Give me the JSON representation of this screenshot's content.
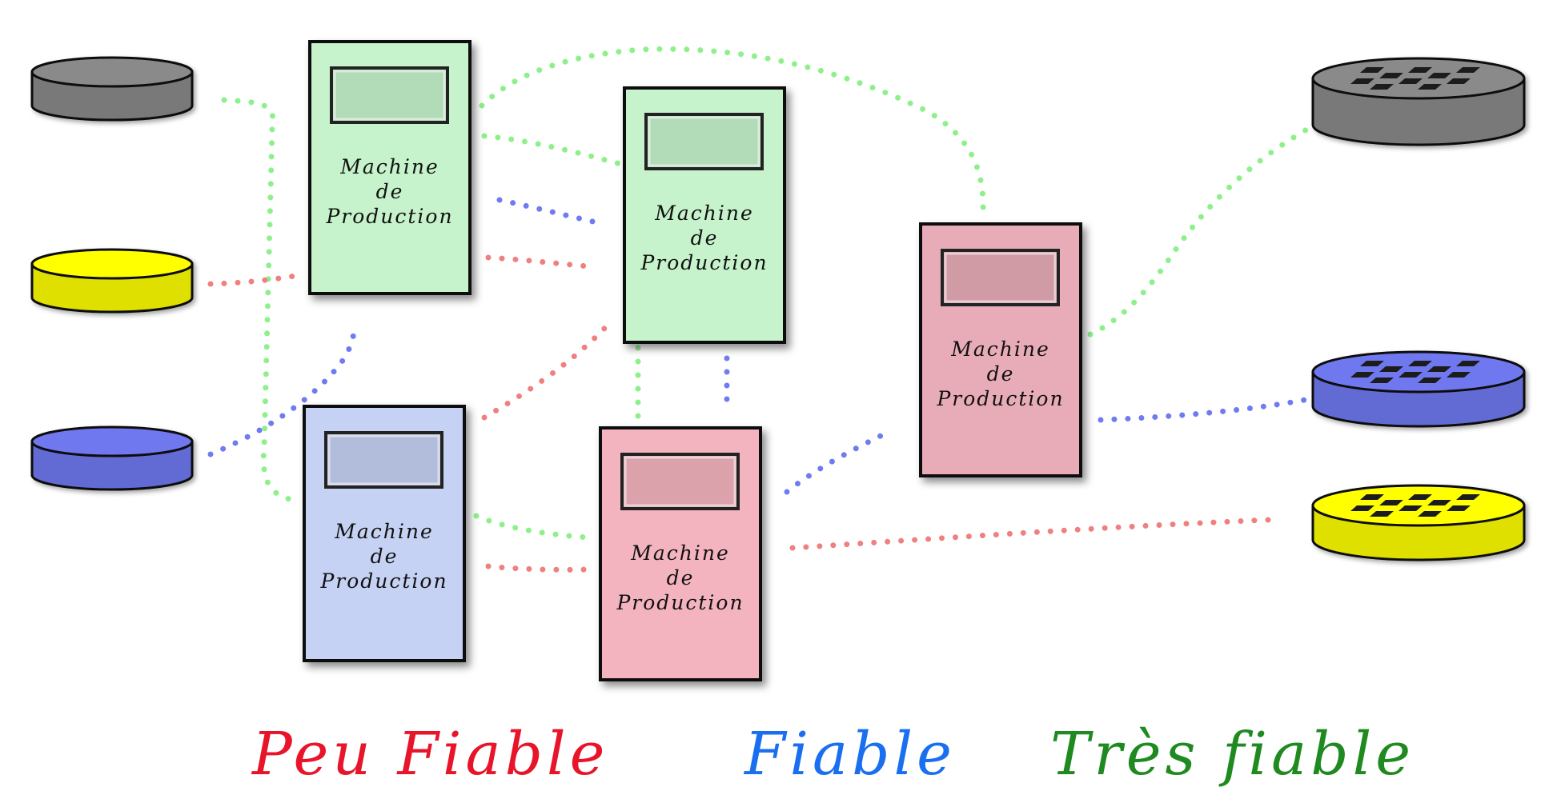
{
  "colors": {
    "background": "#ffffff",
    "peu_fiable": "#e8142a",
    "fiable": "#1a6ff0",
    "tres_fiable": "#1f8a1f",
    "link_green": "#8ef08a",
    "link_blue": "#6f7cf0",
    "link_red": "#f08080",
    "disk_gray": "#8a8a8a",
    "disk_yellow": "#ffff00",
    "disk_blue": "#6f78f0",
    "machine_green": "#c6f3cb",
    "machine_blue": "#c6d2f3",
    "machine_pink": "#f3b4bf",
    "machine_rose": "#e8acb8"
  },
  "machines": [
    {
      "id": "m1",
      "label_lines": [
        "Machine",
        "de",
        "Production"
      ],
      "color": "machine_green"
    },
    {
      "id": "m2",
      "label_lines": [
        "Machine",
        "de",
        "Production"
      ],
      "color": "machine_green"
    },
    {
      "id": "m3",
      "label_lines": [
        "Machine",
        "de",
        "Production"
      ],
      "color": "machine_rose"
    },
    {
      "id": "m4",
      "label_lines": [
        "Machine",
        "de",
        "Production"
      ],
      "color": "machine_blue"
    },
    {
      "id": "m5",
      "label_lines": [
        "Machine",
        "de",
        "Production"
      ],
      "color": "machine_pink"
    }
  ],
  "disks_left": [
    {
      "id": "disk-gray",
      "color": "disk_gray",
      "patterned": false
    },
    {
      "id": "disk-yellow",
      "color": "disk_yellow",
      "patterned": false
    },
    {
      "id": "disk-blue",
      "color": "disk_blue",
      "patterned": false
    }
  ],
  "disks_right": [
    {
      "id": "disk-gray-raid",
      "color": "disk_gray",
      "patterned": true
    },
    {
      "id": "disk-blue-raid",
      "color": "disk_blue",
      "patterned": true
    },
    {
      "id": "disk-yellow-raid",
      "color": "disk_yellow",
      "patterned": true
    }
  ],
  "legend": {
    "peu_fiable": "Peu Fiable",
    "fiable": "Fiable",
    "tres_fiable": "Très fiable"
  }
}
